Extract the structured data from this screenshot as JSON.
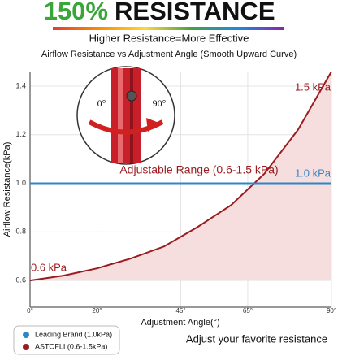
{
  "chart_data": {
    "type": "line",
    "title_lead": "150%",
    "title": "RESISTANCE",
    "subtitle": "Higher Resistance=More Effective",
    "chart_title": "Airflow Resistance vs Adjustment Angle (Smooth Upward Curve)",
    "y_label": "Airflow Resistance(kPa)",
    "x_label": "Adjustment Angle(°)",
    "xlim": [
      0,
      90
    ],
    "ylim": [
      0.49,
      1.46
    ],
    "xticks": [
      {
        "value": 0,
        "label": "0°"
      },
      {
        "value": 20,
        "label": "20°"
      },
      {
        "value": 45,
        "label": "45°"
      },
      {
        "value": 65,
        "label": "65°"
      },
      {
        "value": 90,
        "label": "90°"
      }
    ],
    "yticks": [
      0.6,
      0.8,
      {
        "value": 1.0,
        "label": "1.0"
      },
      1.2,
      1.4
    ],
    "grid": true,
    "series": [
      {
        "name": "ASTOFLI (0.6-1.5kPa)",
        "color": "#9b1b1e",
        "fill": "#f6dede",
        "x": [
          0,
          10,
          20,
          30,
          40,
          50,
          60,
          70,
          80,
          90
        ],
        "values": [
          0.6,
          0.62,
          0.65,
          0.69,
          0.74,
          0.82,
          0.91,
          1.04,
          1.22,
          1.46
        ]
      },
      {
        "name": "Leading Brand (1.0kPa)",
        "color": "#2e86c8",
        "x": [
          0,
          90
        ],
        "values": [
          1.0,
          1.0
        ]
      }
    ],
    "annotations": [
      "1.5 kPa",
      "1.0 kPa",
      "0.6 kPa",
      "Adjustable Range (0.6-1.5 kPa)"
    ],
    "inset_labels": [
      "0°",
      "90°"
    ],
    "footer": "Adjust your favorite resistance"
  }
}
